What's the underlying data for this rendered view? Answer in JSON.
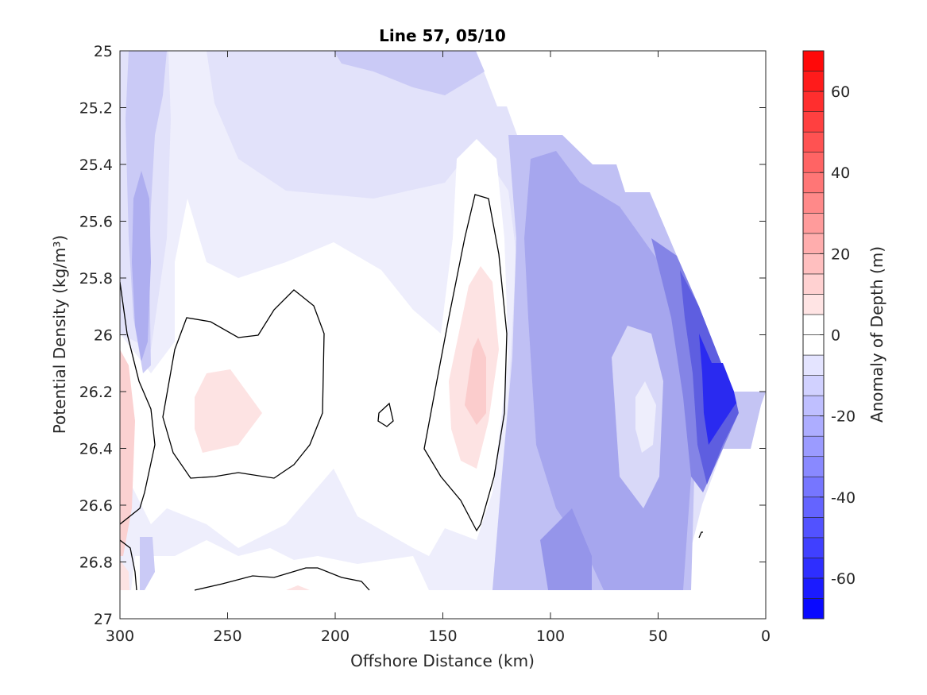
{
  "chart_data": {
    "type": "heatmap",
    "subtype": "filled-contour",
    "title": "Line 57, 05/10",
    "xlabel": "Offshore Distance (km)",
    "ylabel": "Potential Density (kg/m³)",
    "xlim": [
      300,
      0
    ],
    "x_direction": "reversed",
    "ylim": [
      27,
      25
    ],
    "y_direction": "reversed",
    "x_ticks": [
      "300",
      "250",
      "200",
      "150",
      "100",
      "50",
      "0"
    ],
    "x_tick_values": [
      300,
      250,
      200,
      150,
      100,
      50,
      0
    ],
    "y_ticks": [
      "25",
      "25.2",
      "25.4",
      "25.6",
      "25.8",
      "26",
      "26.2",
      "26.4",
      "26.6",
      "26.8",
      "27"
    ],
    "y_tick_values": [
      25,
      25.2,
      25.4,
      25.6,
      25.8,
      26,
      26.2,
      26.4,
      26.6,
      26.8,
      27
    ],
    "grid": false,
    "colorbar": {
      "label": "Anomaly of Depth (m)",
      "range": [
        -70,
        70
      ],
      "level_step": 5,
      "ticks": [
        "60",
        "40",
        "20",
        "0",
        "-20",
        "-40",
        "-60"
      ],
      "tick_values": [
        60,
        40,
        20,
        0,
        -20,
        -40,
        -60
      ],
      "colormap": "blue-white-red",
      "min_color": "#0000ff",
      "zero_color": "#ffffff",
      "max_color": "#ff0000"
    },
    "contour_lines": {
      "level": 0,
      "color": "#000000"
    },
    "data_extent": {
      "note_columns": "offshore distance in km, bottom boundary of data at density 26.9",
      "coast_edge": [
        [
          120,
          25.0
        ],
        [
          116,
          25.2
        ],
        [
          110,
          25.3
        ],
        [
          100,
          25.3
        ],
        [
          94,
          25.4
        ],
        [
          84,
          25.4
        ],
        [
          78,
          25.5
        ],
        [
          72,
          25.5
        ],
        [
          62,
          25.8
        ],
        [
          46,
          26.0
        ],
        [
          30,
          26.1
        ],
        [
          24,
          26.1
        ],
        [
          20,
          26.2
        ],
        [
          0,
          26.2
        ],
        [
          20,
          26.4
        ],
        [
          34,
          26.9
        ]
      ],
      "bottom_density": 26.9
    },
    "series": [
      {
        "feature": "negative anomaly near coast",
        "x": 23,
        "y": 26.3,
        "value": -55
      },
      {
        "feature": "negative anomaly offshore band",
        "x": 90,
        "y": 26.4,
        "value": -30
      },
      {
        "feature": "weak minimum",
        "x": 55,
        "y": 26.3,
        "value": -10
      },
      {
        "feature": "positive anomaly core",
        "x": 135,
        "y": 26.2,
        "value": 8
      },
      {
        "feature": "positive anomaly core",
        "x": 260,
        "y": 26.25,
        "value": 3
      },
      {
        "feature": "positive anomaly at offshore edge",
        "x": 298,
        "y": 26.3,
        "value": 8
      },
      {
        "feature": "negative anomaly offshore column",
        "x": 290,
        "y": 25.8,
        "value": -25
      }
    ]
  }
}
